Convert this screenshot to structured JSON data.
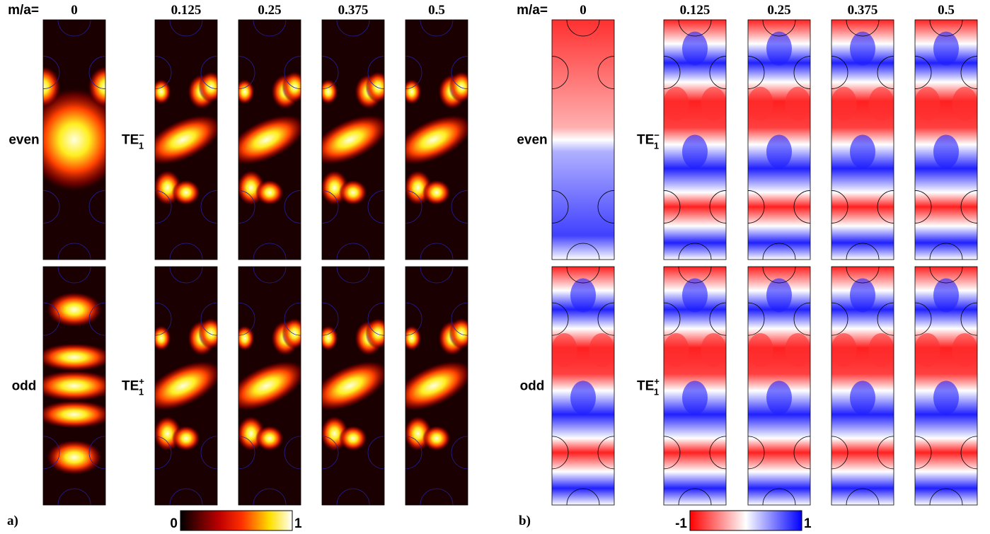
{
  "panels": [
    {
      "label": "a)",
      "header": "m/a=",
      "columns": [
        "0",
        "0.125",
        "0.25",
        "0.375",
        "0.5"
      ],
      "rows": [
        {
          "mode": "even",
          "te": "TE",
          "te_sub": "1",
          "te_sup": "−"
        },
        {
          "mode": "odd",
          "te": "TE",
          "te_sub": "1",
          "te_sup": "+"
        }
      ],
      "colorbar": {
        "min": "0",
        "max": "1"
      }
    },
    {
      "label": "b)",
      "header": "m/a=",
      "columns": [
        "0",
        "0.125",
        "0.25",
        "0.375",
        "0.5"
      ],
      "rows": [
        {
          "mode": "even",
          "te": "TE",
          "te_sub": "1",
          "te_sup": "−"
        },
        {
          "mode": "odd",
          "te": "TE",
          "te_sub": "1",
          "te_sup": "+"
        }
      ],
      "colorbar": {
        "min": "-1",
        "max": "1"
      }
    }
  ]
}
